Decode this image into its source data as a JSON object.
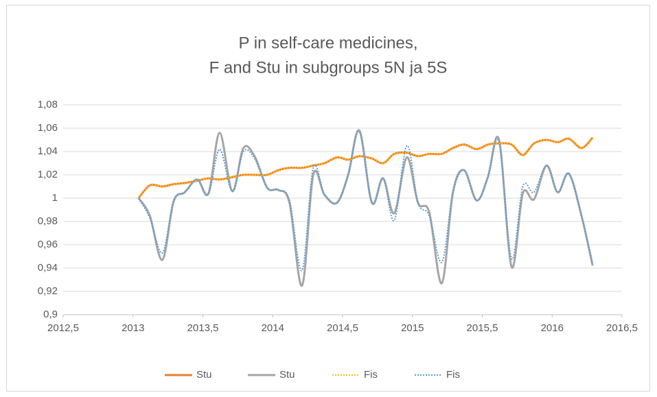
{
  "chart_data": {
    "type": "line",
    "title_lines": [
      "P in self-care medicines,",
      "F and Stu in subgroups 5N ja 5S"
    ],
    "x": [
      2013.04,
      2013.12,
      2013.21,
      2013.29,
      2013.37,
      2013.46,
      2013.54,
      2013.62,
      2013.71,
      2013.79,
      2013.87,
      2013.96,
      2014.04,
      2014.12,
      2014.21,
      2014.29,
      2014.37,
      2014.46,
      2014.54,
      2014.62,
      2014.71,
      2014.79,
      2014.87,
      2014.96,
      2015.04,
      2015.12,
      2015.21,
      2015.29,
      2015.37,
      2015.46,
      2015.54,
      2015.62,
      2015.71,
      2015.79,
      2015.87,
      2015.96,
      2016.04,
      2016.12,
      2016.21,
      2016.29
    ],
    "series": [
      {
        "name": "Stu",
        "color": "#ed7d31",
        "dash": "solid",
        "values": [
          1.0,
          1.011,
          1.01,
          1.012,
          1.013,
          1.015,
          1.017,
          1.016,
          1.018,
          1.02,
          1.02,
          1.02,
          1.024,
          1.026,
          1.026,
          1.028,
          1.03,
          1.035,
          1.033,
          1.036,
          1.034,
          1.03,
          1.038,
          1.039,
          1.036,
          1.038,
          1.038,
          1.043,
          1.046,
          1.042,
          1.046,
          1.047,
          1.046,
          1.037,
          1.047,
          1.05,
          1.048,
          1.051,
          1.043,
          1.052
        ]
      },
      {
        "name": "Stu",
        "color": "#a5a5a5",
        "dash": "solid",
        "values": [
          1.0,
          0.985,
          0.947,
          0.997,
          1.005,
          1.016,
          1.004,
          1.056,
          1.006,
          1.043,
          1.036,
          1.009,
          1.007,
          0.996,
          0.925,
          1.02,
          1.003,
          0.996,
          1.02,
          1.058,
          0.996,
          1.017,
          0.987,
          1.035,
          0.996,
          0.988,
          0.927,
          1.005,
          1.024,
          0.998,
          1.018,
          1.05,
          0.941,
          1.004,
          0.999,
          1.028,
          1.005,
          1.021,
          0.985,
          0.942
        ]
      },
      {
        "name": "Fis",
        "color": "#ffc000",
        "dash": "dotted",
        "values": [
          1.0,
          1.011,
          1.01,
          1.012,
          1.013,
          1.015,
          1.017,
          1.016,
          1.018,
          1.02,
          1.02,
          1.02,
          1.024,
          1.026,
          1.026,
          1.028,
          1.03,
          1.035,
          1.033,
          1.036,
          1.034,
          1.03,
          1.038,
          1.039,
          1.036,
          1.038,
          1.038,
          1.043,
          1.046,
          1.042,
          1.046,
          1.047,
          1.046,
          1.037,
          1.047,
          1.05,
          1.048,
          1.051,
          1.043,
          1.052
        ]
      },
      {
        "name": "Fis",
        "color": "#5b9bd5",
        "dash": "dotted",
        "values": [
          1.0,
          0.983,
          0.953,
          0.997,
          1.005,
          1.016,
          1.004,
          1.042,
          1.006,
          1.04,
          1.034,
          1.009,
          1.007,
          0.998,
          0.938,
          1.026,
          1.003,
          0.996,
          1.02,
          1.057,
          0.996,
          1.017,
          0.981,
          1.045,
          0.996,
          0.985,
          0.945,
          1.005,
          1.024,
          0.998,
          1.018,
          1.048,
          0.948,
          1.01,
          1.005,
          1.028,
          1.005,
          1.021,
          0.985,
          0.944
        ]
      }
    ],
    "xlim": [
      2012.5,
      2016.5
    ],
    "xticks": [
      {
        "value": 2012.5,
        "label": "2012,5"
      },
      2013,
      {
        "value": 2013.5,
        "label": "2013,5"
      },
      2014,
      {
        "value": 2014.5,
        "label": "2014,5"
      },
      2015,
      {
        "value": 2015.5,
        "label": "2015,5"
      },
      2016,
      {
        "value": 2016.5,
        "label": "2016,5"
      }
    ],
    "ylim": [
      0.9,
      1.08
    ],
    "yticks": [
      {
        "value": 0.9,
        "label": "0,9"
      },
      {
        "value": 0.92,
        "label": "0,92"
      },
      {
        "value": 0.94,
        "label": "0,94"
      },
      {
        "value": 0.96,
        "label": "0,96"
      },
      {
        "value": 0.98,
        "label": "0,98"
      },
      1,
      {
        "value": 1.02,
        "label": "1,02"
      },
      {
        "value": 1.04,
        "label": "1,04"
      },
      {
        "value": 1.06,
        "label": "1,06"
      },
      {
        "value": 1.08,
        "label": "1,08"
      }
    ],
    "grid": true,
    "smooth": true,
    "legend": "bottom"
  }
}
